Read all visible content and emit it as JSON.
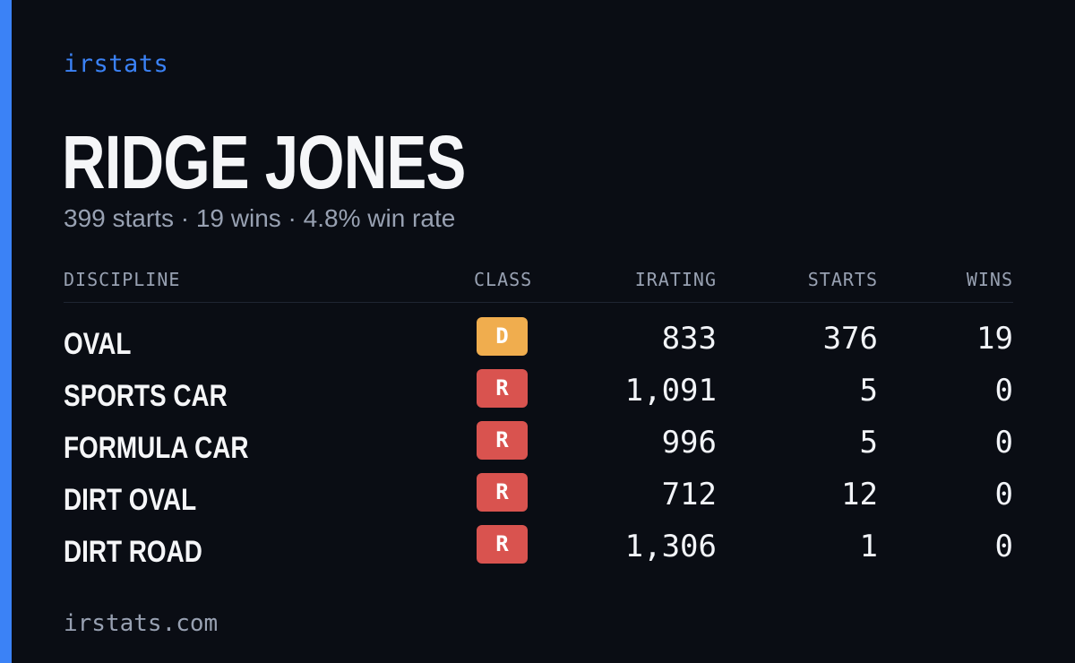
{
  "header": {
    "brand": "irstats"
  },
  "profile": {
    "name": "RIDGE JONES",
    "summary": "399 starts · 19 wins · 4.8% win rate"
  },
  "table": {
    "columns": {
      "discipline": "DISCIPLINE",
      "class": "CLASS",
      "irating": "IRATING",
      "starts": "STARTS",
      "wins": "WINS"
    },
    "rows": [
      {
        "discipline": "OVAL",
        "class": "D",
        "irating": "833",
        "starts": "376",
        "wins": "19"
      },
      {
        "discipline": "SPORTS CAR",
        "class": "R",
        "irating": "1,091",
        "starts": "5",
        "wins": "0"
      },
      {
        "discipline": "FORMULA CAR",
        "class": "R",
        "irating": "996",
        "starts": "5",
        "wins": "0"
      },
      {
        "discipline": "DIRT OVAL",
        "class": "R",
        "irating": "712",
        "starts": "12",
        "wins": "0"
      },
      {
        "discipline": "DIRT ROAD",
        "class": "R",
        "irating": "1,306",
        "starts": "1",
        "wins": "0"
      }
    ]
  },
  "footer": {
    "site": "irstats.com"
  },
  "colors": {
    "background": "#0a0d14",
    "accent": "#3b82f6",
    "class_d": "#f0ad4e",
    "class_r": "#d9534f",
    "muted_text": "#98a1b2"
  }
}
